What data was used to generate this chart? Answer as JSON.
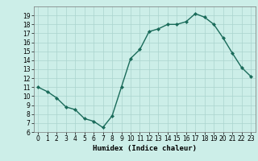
{
  "x": [
    0,
    1,
    2,
    3,
    4,
    5,
    6,
    7,
    8,
    9,
    10,
    11,
    12,
    13,
    14,
    15,
    16,
    17,
    18,
    19,
    20,
    21,
    22,
    23
  ],
  "y": [
    11,
    10.5,
    9.8,
    8.8,
    8.5,
    7.5,
    7.2,
    6.5,
    7.8,
    11.0,
    14.2,
    15.2,
    17.2,
    17.5,
    18.0,
    18.0,
    18.3,
    19.2,
    18.8,
    18.0,
    16.5,
    14.8,
    13.2,
    12.2
  ],
  "line_color": "#1a6b5a",
  "marker": "D",
  "marker_size": 2,
  "bg_color": "#cceee8",
  "grid_color": "#aad4ce",
  "xlabel": "Humidex (Indice chaleur)",
  "xlim": [
    -0.5,
    23.5
  ],
  "ylim": [
    6,
    20
  ],
  "yticks": [
    6,
    7,
    8,
    9,
    10,
    11,
    12,
    13,
    14,
    15,
    16,
    17,
    18,
    19
  ],
  "xticks": [
    0,
    1,
    2,
    3,
    4,
    5,
    6,
    7,
    8,
    9,
    10,
    11,
    12,
    13,
    14,
    15,
    16,
    17,
    18,
    19,
    20,
    21,
    22,
    23
  ],
  "xlabel_fontsize": 6.5,
  "tick_fontsize": 5.5,
  "line_width": 1.0
}
